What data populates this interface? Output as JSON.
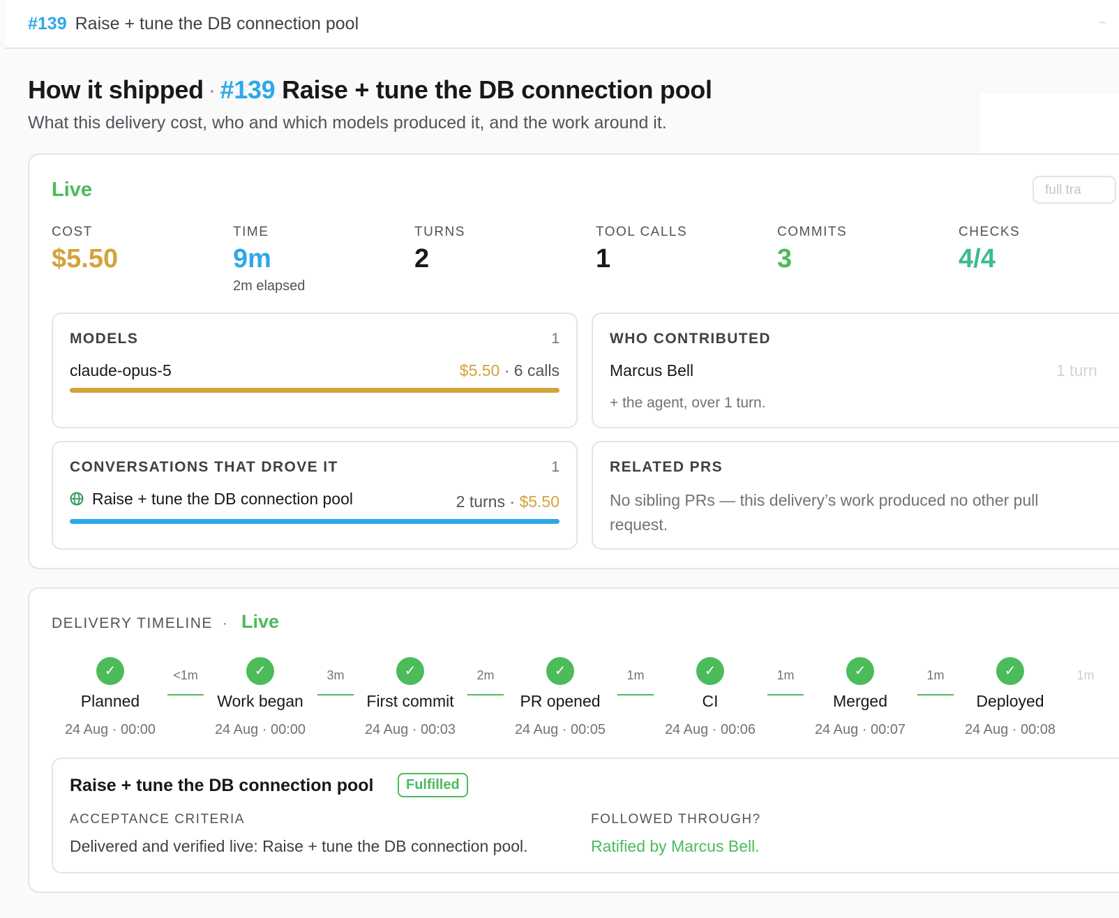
{
  "topbar": {
    "pr_number": "#139",
    "title": "Raise + tune the DB connection pool",
    "corner": "~"
  },
  "header": {
    "prefix": "How it shipped",
    "separator": "·",
    "pr_number": "#139",
    "title": "Raise + tune the DB connection pool",
    "subtitle": "What this delivery cost, who and which models produced it, and the work around it."
  },
  "summary": {
    "status": "Live",
    "full_button": "full tra",
    "stats": [
      {
        "label": "COST",
        "value": "$5.50",
        "color": "#d4a23a"
      },
      {
        "label": "TIME",
        "value": "9m",
        "sub": "2m elapsed",
        "color": "#2ea8ea"
      },
      {
        "label": "TURNS",
        "value": "2",
        "color": "#18181b"
      },
      {
        "label": "TOOL CALLS",
        "value": "1",
        "color": "#18181b"
      },
      {
        "label": "COMMITS",
        "value": "3",
        "color": "#4cbb5a"
      },
      {
        "label": "CHECKS",
        "value": "4/4",
        "color": "#3dba8c"
      }
    ]
  },
  "models": {
    "heading": "MODELS",
    "count": "1",
    "items": [
      {
        "name": "claude-opus-5",
        "cost": "$5.50",
        "separator": "·",
        "calls": "6 calls",
        "share": 1.0,
        "color": "#d4a23a"
      }
    ]
  },
  "contributors": {
    "heading": "WHO CONTRIBUTED",
    "items": [
      {
        "name": "Marcus Bell",
        "turns": "1 turn"
      }
    ],
    "note": "+ the agent, over 1 turn."
  },
  "conversations": {
    "heading": "CONVERSATIONS THAT DROVE IT",
    "count": "1",
    "items": [
      {
        "icon": "globe-icon",
        "title": "Raise + tune the DB connection pool",
        "turns": "2 turns",
        "separator": "·",
        "cost": "$5.50",
        "share": 1.0,
        "color": "#2ea8ea"
      }
    ]
  },
  "related_prs": {
    "heading": "RELATED PRS",
    "text": "No sibling PRs — this delivery’s work produced no other pull request."
  },
  "timeline": {
    "heading": "DELIVERY TIMELINE",
    "separator": "·",
    "status": "Live",
    "steps": [
      {
        "name": "Planned",
        "time": "24 Aug · 00:00"
      },
      {
        "name": "Work began",
        "time": "24 Aug · 00:00"
      },
      {
        "name": "First commit",
        "time": "24 Aug · 00:03"
      },
      {
        "name": "PR opened",
        "time": "24 Aug · 00:05"
      },
      {
        "name": "CI",
        "time": "24 Aug · 00:06"
      },
      {
        "name": "Merged",
        "time": "24 Aug · 00:07"
      },
      {
        "name": "Deployed",
        "time": "24 Aug · 00:08"
      }
    ],
    "gaps": [
      "<1m",
      "3m",
      "2m",
      "1m",
      "1m",
      "1m",
      "1m"
    ],
    "check_glyph": "✓"
  },
  "fulfillment": {
    "title": "Raise + tune the DB connection pool",
    "badge": "Fulfilled",
    "criteria_label": "ACCEPTANCE CRITERIA",
    "criteria_text": "Delivered and verified live: Raise + tune the DB connection pool.",
    "follow_label": "FOLLOWED THROUGH?",
    "follow_text": "Ratified by Marcus Bell."
  }
}
